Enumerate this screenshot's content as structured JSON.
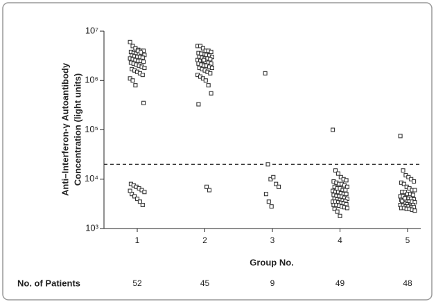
{
  "chart_data": {
    "type": "strip",
    "y_label": [
      "Anti–Interferon-γ Autoantibody",
      "Concentration (light units)"
    ],
    "x_label": "Group No.",
    "log_y": true,
    "ylim": [
      1000,
      10000000
    ],
    "yticks": [
      {
        "value": 1000,
        "label": "10³"
      },
      {
        "value": 10000,
        "label": "10⁴"
      },
      {
        "value": 100000,
        "label": "10⁵"
      },
      {
        "value": 1000000,
        "label": "10⁶"
      },
      {
        "value": 10000000,
        "label": "10⁷"
      }
    ],
    "reference_line": 20000,
    "color": "#333333",
    "categories": [
      "1",
      "2",
      "3",
      "4",
      "5"
    ],
    "values": [
      [
        6000000,
        5000000,
        4500000,
        4200000,
        4000000,
        4000000,
        3800000,
        3600000,
        3500000,
        3500000,
        3400000,
        3300000,
        3200000,
        3100000,
        3000000,
        3000000,
        2900000,
        2800000,
        2700000,
        2600000,
        2500000,
        2500000,
        2400000,
        2300000,
        2200000,
        2100000,
        2000000,
        1900000,
        1800000,
        1700000,
        1600000,
        1500000,
        1400000,
        1300000,
        1100000,
        1000000,
        800000,
        4000000,
        3700000,
        350000,
        8000,
        7500,
        7000,
        6500,
        6000,
        5500,
        5000,
        4500,
        4000,
        3500,
        3000,
        5800
      ],
      [
        5000000,
        5000000,
        4500000,
        4000000,
        4000000,
        3800000,
        3600000,
        3500000,
        3400000,
        3300000,
        3200000,
        3000000,
        3000000,
        2900000,
        2800000,
        2800000,
        2700000,
        2600000,
        2500000,
        2500000,
        2400000,
        2300000,
        2200000,
        2200000,
        2100000,
        2000000,
        2000000,
        1900000,
        1800000,
        1800000,
        1700000,
        1600000,
        1500000,
        1400000,
        1300000,
        1200000,
        1100000,
        1000000,
        800000,
        550000,
        330000,
        3500000,
        2600000,
        7000,
        6000
      ],
      [
        1400000,
        20000,
        10000,
        11000,
        8000,
        7000,
        5000,
        3500,
        2800
      ],
      [
        100000,
        15000,
        13000,
        11000,
        10000,
        9500,
        9000,
        8500,
        8000,
        8000,
        7500,
        7000,
        7000,
        6500,
        6500,
        6000,
        6000,
        5800,
        5500,
        5500,
        5200,
        5000,
        5000,
        4800,
        4600,
        4500,
        4400,
        4200,
        4000,
        4000,
        3900,
        3800,
        3700,
        3600,
        3500,
        3500,
        3400,
        3300,
        3200,
        3100,
        3000,
        3000,
        2900,
        2800,
        2700,
        2600,
        2500,
        2200,
        1800
      ],
      [
        75000,
        15000,
        12000,
        11000,
        10000,
        9000,
        8500,
        8000,
        7000,
        6500,
        6000,
        6000,
        5500,
        5500,
        5000,
        5000,
        4800,
        4500,
        4500,
        4200,
        4000,
        4000,
        3900,
        3800,
        3700,
        3600,
        3500,
        3500,
        3400,
        3300,
        3200,
        3100,
        3000,
        3000,
        3000,
        2900,
        2800,
        2800,
        2700,
        2700,
        2600,
        2600,
        2500,
        2500,
        2400,
        2300,
        3600,
        4100
      ]
    ],
    "patients_label": "No. of Patients",
    "patients": [
      52,
      45,
      9,
      49,
      48
    ]
  }
}
